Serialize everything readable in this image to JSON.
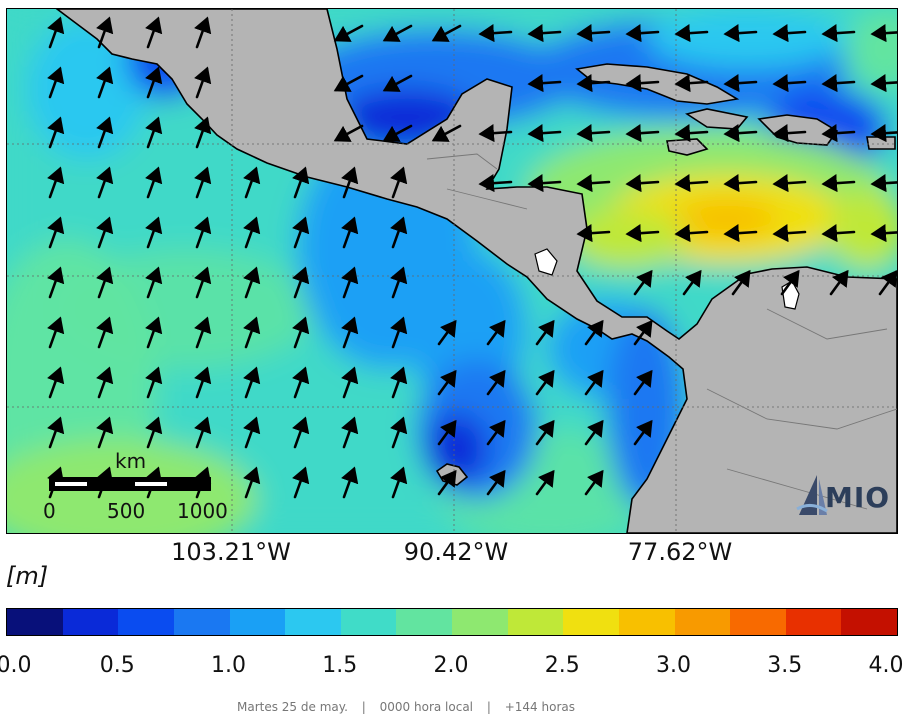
{
  "map": {
    "unit_label": "[m]",
    "longitude_labels": [
      "103.21°W",
      "90.42°W",
      "77.62°W"
    ],
    "scale_bar": {
      "unit": "km",
      "ticks": [
        "0",
        "500",
        "1000"
      ]
    },
    "logo_text": "MIO",
    "colors": {
      "land": "#b4b4b4",
      "ocean_background": "#3fd9c8",
      "arrows": "#000000",
      "lakes": "#ffffff"
    }
  },
  "colorbar": {
    "min": 0.0,
    "max": 4.0,
    "tick_labels": [
      "0.0",
      "0.5",
      "1.0",
      "1.5",
      "2.0",
      "2.5",
      "3.0",
      "3.5",
      "4.0"
    ],
    "colors": [
      "#08107a",
      "#0a2ad8",
      "#0a4cf0",
      "#1a78f2",
      "#1aa0f5",
      "#2cc8f0",
      "#40dcc8",
      "#62e4a0",
      "#8ee870",
      "#bfe838",
      "#f0e010",
      "#f8c000",
      "#f89a00",
      "#f86a00",
      "#e83000",
      "#c41000"
    ]
  },
  "footer": {
    "date": "Martes 25 de may.",
    "separator": "|",
    "local_time": "0000 hora local",
    "forecast": "+144 horas"
  }
}
